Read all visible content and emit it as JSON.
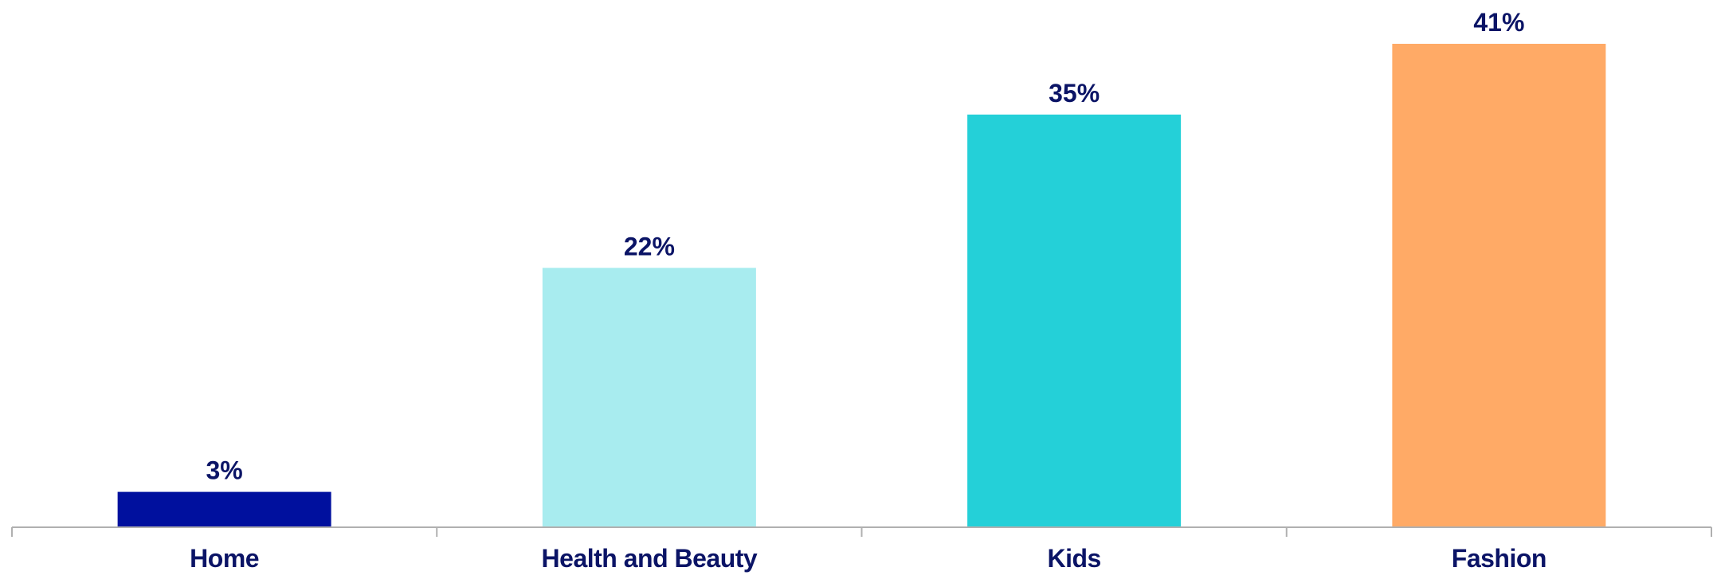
{
  "chart_data": {
    "type": "bar",
    "categories": [
      "Home",
      "Health and Beauty",
      "Kids",
      "Fashion"
    ],
    "values": [
      3,
      22,
      35,
      41
    ],
    "value_labels": [
      "3%",
      "22%",
      "35%",
      "41%"
    ],
    "unit": "%",
    "ylim": [
      0,
      41
    ],
    "grid": false,
    "legend": "none",
    "colors": [
      "#00109E",
      "#A8ECEF",
      "#24D0D8",
      "#FFAA66"
    ],
    "label_color": "#0B1466",
    "axis_color": "#B0B0B0"
  }
}
